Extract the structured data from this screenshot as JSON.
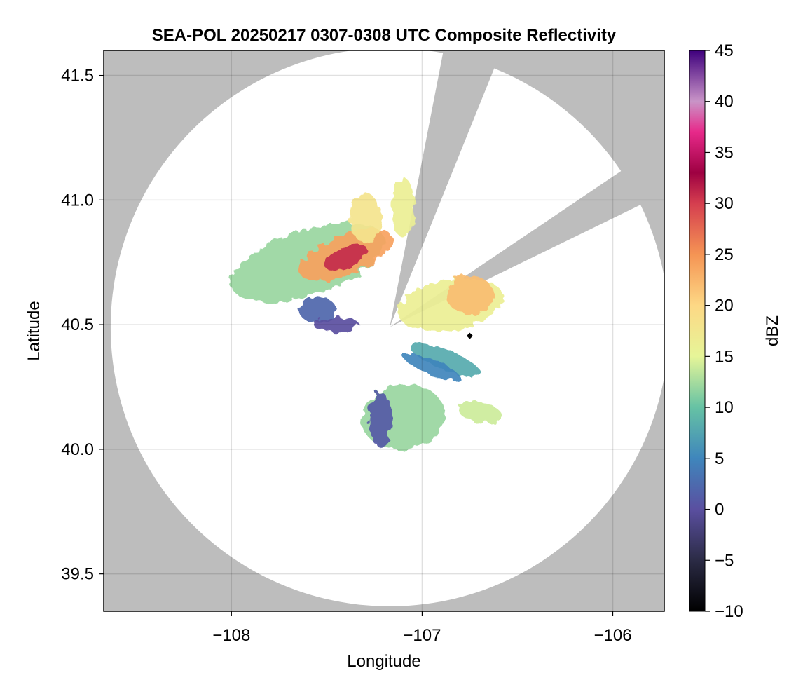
{
  "chart_data": {
    "type": "heatmap",
    "title": "SEA-POL 20250217 0307-0308 UTC Composite Reflectivity",
    "xlabel": "Longitude",
    "ylabel": "Latitude",
    "xlim": [
      -108.67,
      -105.73
    ],
    "ylim": [
      39.35,
      41.6
    ],
    "xticks": [
      -108,
      -107,
      -106
    ],
    "xtick_labels": [
      "−108",
      "−107",
      "−106"
    ],
    "yticks": [
      39.5,
      40.0,
      40.5,
      41.0,
      41.5
    ],
    "ytick_labels": [
      "39.5",
      "40.0",
      "40.5",
      "41.0",
      "41.5"
    ],
    "grid": true,
    "background_color": "#bdbdbd",
    "radar_site": {
      "lon": -107.17,
      "lat": 40.49
    },
    "max_range_deg_lat": 1.12,
    "blocked_sectors": [
      {
        "from_az_deg": 11,
        "to_az_deg": 22
      },
      {
        "from_az_deg": 56,
        "to_az_deg": 64
      }
    ],
    "marker": {
      "lon": -106.75,
      "lat": 40.455,
      "symbol": "diamond"
    },
    "colorbar": {
      "label": "dBZ",
      "min": -10,
      "max": 45,
      "ticks": [
        -10,
        -5,
        0,
        5,
        10,
        15,
        20,
        25,
        30,
        35,
        40,
        45
      ],
      "tick_labels": [
        "−10",
        "−5",
        "0",
        "5",
        "10",
        "15",
        "20",
        "25",
        "30",
        "35",
        "40",
        "45"
      ],
      "colormap": "spectral-reversed with purple top"
    },
    "echo_regions": [
      {
        "lon": -107.6,
        "lat": 40.75,
        "rx": 0.42,
        "ry": 0.13,
        "rot": -18,
        "dbz": 12
      },
      {
        "lon": -107.4,
        "lat": 40.78,
        "rx": 0.26,
        "ry": 0.08,
        "rot": -22,
        "dbz": 24
      },
      {
        "lon": -107.4,
        "lat": 40.77,
        "rx": 0.12,
        "ry": 0.04,
        "rot": -24,
        "dbz": 31
      },
      {
        "lon": -107.3,
        "lat": 40.93,
        "rx": 0.08,
        "ry": 0.1,
        "rot": 0,
        "dbz": 18
      },
      {
        "lon": -107.1,
        "lat": 40.97,
        "rx": 0.06,
        "ry": 0.12,
        "rot": 0,
        "dbz": 16
      },
      {
        "lon": -107.55,
        "lat": 40.56,
        "rx": 0.1,
        "ry": 0.05,
        "rot": 0,
        "dbz": 2
      },
      {
        "lon": -107.45,
        "lat": 40.5,
        "rx": 0.12,
        "ry": 0.03,
        "rot": 0,
        "dbz": 0
      },
      {
        "lon": -106.85,
        "lat": 40.58,
        "rx": 0.28,
        "ry": 0.1,
        "rot": -10,
        "dbz": 16
      },
      {
        "lon": -106.75,
        "lat": 40.62,
        "rx": 0.12,
        "ry": 0.08,
        "rot": -5,
        "dbz": 22
      },
      {
        "lon": -106.88,
        "lat": 40.36,
        "rx": 0.2,
        "ry": 0.04,
        "rot": 22,
        "dbz": 8
      },
      {
        "lon": -106.95,
        "lat": 40.33,
        "rx": 0.16,
        "ry": 0.03,
        "rot": 22,
        "dbz": 5
      },
      {
        "lon": -107.1,
        "lat": 40.13,
        "rx": 0.22,
        "ry": 0.13,
        "rot": -8,
        "dbz": 12
      },
      {
        "lon": -107.22,
        "lat": 40.12,
        "rx": 0.06,
        "ry": 0.11,
        "rot": 0,
        "dbz": 1
      },
      {
        "lon": -106.7,
        "lat": 40.15,
        "rx": 0.12,
        "ry": 0.04,
        "rot": 12,
        "dbz": 14
      }
    ]
  }
}
